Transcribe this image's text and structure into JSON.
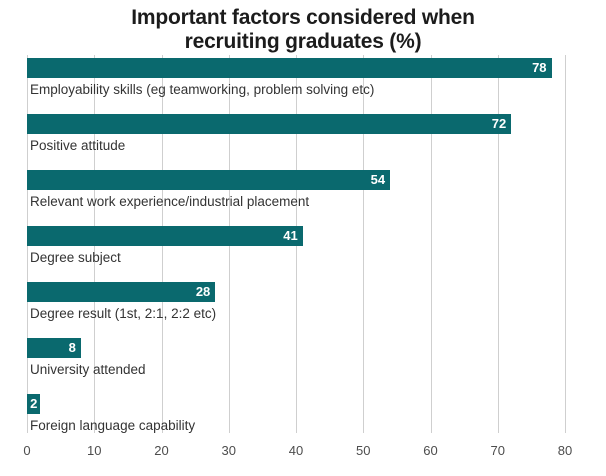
{
  "chart": {
    "title_lines": [
      "Important factors considered when",
      "recruiting graduates (%)"
    ]
  },
  "chart_data": {
    "type": "bar",
    "orientation": "horizontal",
    "title": "Important factors considered when recruiting graduates (%)",
    "categories": [
      "Employability skills (eg teamworking, problem solving etc)",
      "Positive attitude",
      "Relevant work experience/industrial placement",
      "Degree subject",
      "Degree result (1st, 2:1, 2:2 etc)",
      "University attended",
      "Foreign language capability"
    ],
    "values": [
      78,
      72,
      54,
      41,
      28,
      8,
      2
    ],
    "xlabel": "",
    "ylabel": "",
    "xlim": [
      0,
      80
    ],
    "xticks": [
      0,
      10,
      20,
      30,
      40,
      50,
      60,
      70,
      80
    ],
    "grid": "vertical",
    "legend": "none",
    "bar_color": "#0a696e",
    "value_label_color": "#ffffff"
  }
}
